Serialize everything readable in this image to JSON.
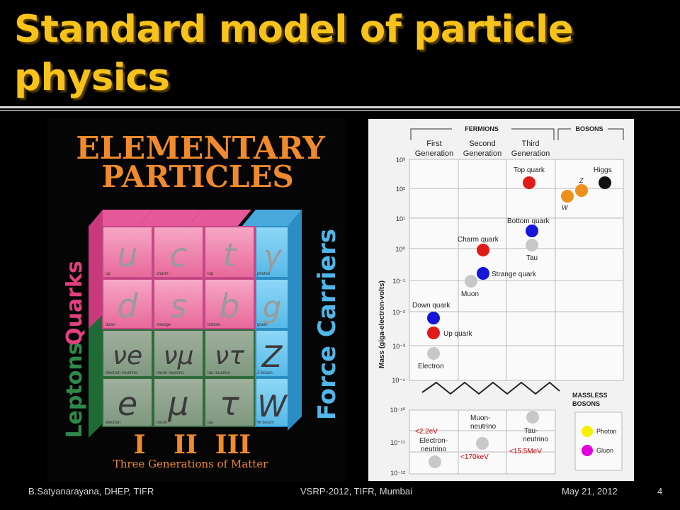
{
  "slide": {
    "title": "Standard model of particle physics",
    "footer_left": "B.Satyanarayana, DHEP, TIFR",
    "footer_center": "VSRP-2012, TIFR, Mumbai",
    "footer_right": "May 21, 2012",
    "page_number": "4"
  },
  "left_panel": {
    "title_line1": "ELEMENTARY",
    "title_line2": "PARTICLES",
    "quarks_label": "Quarks",
    "leptons_label": "Leptons",
    "forces_label": "Force Carriers",
    "gen_I": "I",
    "gen_II": "II",
    "gen_III": "III",
    "generations_caption": "Three Generations of Matter",
    "cells": [
      {
        "sym": "u",
        "name": "up"
      },
      {
        "sym": "c",
        "name": "charm"
      },
      {
        "sym": "t",
        "name": "top"
      },
      {
        "sym": "d",
        "name": "down"
      },
      {
        "sym": "s",
        "name": "strange"
      },
      {
        "sym": "b",
        "name": "bottom"
      },
      {
        "sym": "νe",
        "name": "electron neutrino"
      },
      {
        "sym": "νμ",
        "name": "muon neutrino"
      },
      {
        "sym": "ντ",
        "name": "tau neutrino"
      },
      {
        "sym": "e",
        "name": "electron"
      },
      {
        "sym": "μ",
        "name": "muon"
      },
      {
        "sym": "τ",
        "name": "tau"
      }
    ],
    "forces": [
      {
        "sym": "γ",
        "name": "photon"
      },
      {
        "sym": "g",
        "name": "gluon"
      },
      {
        "sym": "Z",
        "name": "Z boson"
      },
      {
        "sym": "W",
        "name": "W boson"
      }
    ]
  },
  "right_panel": {
    "fermions": "FERMIONS",
    "bosons": "BOSONS",
    "gen1": [
      "First",
      "Generation"
    ],
    "gen2": [
      "Second",
      "Generation"
    ],
    "gen3": [
      "Third",
      "Generation"
    ],
    "y_axis": "Mass (giga-electron-volts)",
    "ticks": [
      "10³",
      "10²",
      "10¹",
      "10⁰",
      "10⁻¹",
      "10⁻²",
      "10⁻³",
      "10⁻⁴",
      "10⁻¹⁰",
      "10⁻¹¹",
      "10⁻¹²"
    ],
    "particles": [
      "Top quark",
      "Higgs",
      "Z",
      "W",
      "Bottom quark",
      "Charm quark",
      "Tau",
      "Strange quark",
      "Muon",
      "Down quark",
      "Up quark",
      "Electron"
    ],
    "massless_title": [
      "MASSLESS",
      "BOSONS"
    ],
    "neutrinos": [
      [
        "Electron-",
        "neutrino"
      ],
      [
        "Muon-",
        "neutrino"
      ],
      [
        "Tau-",
        "neutrino"
      ]
    ],
    "annot_e": "<2.2eV",
    "annot_mu": "<170keV",
    "annot_tau": "<15.5MeV",
    "photon": "Photon",
    "gluon": "Gluon"
  },
  "colors": {
    "title_gold": "#f7c31a",
    "quark_pink": "#f06fa3",
    "lepton_green": "#2f8a4a",
    "force_blue": "#4fb7ea",
    "orange_text": "#f08a2c"
  }
}
